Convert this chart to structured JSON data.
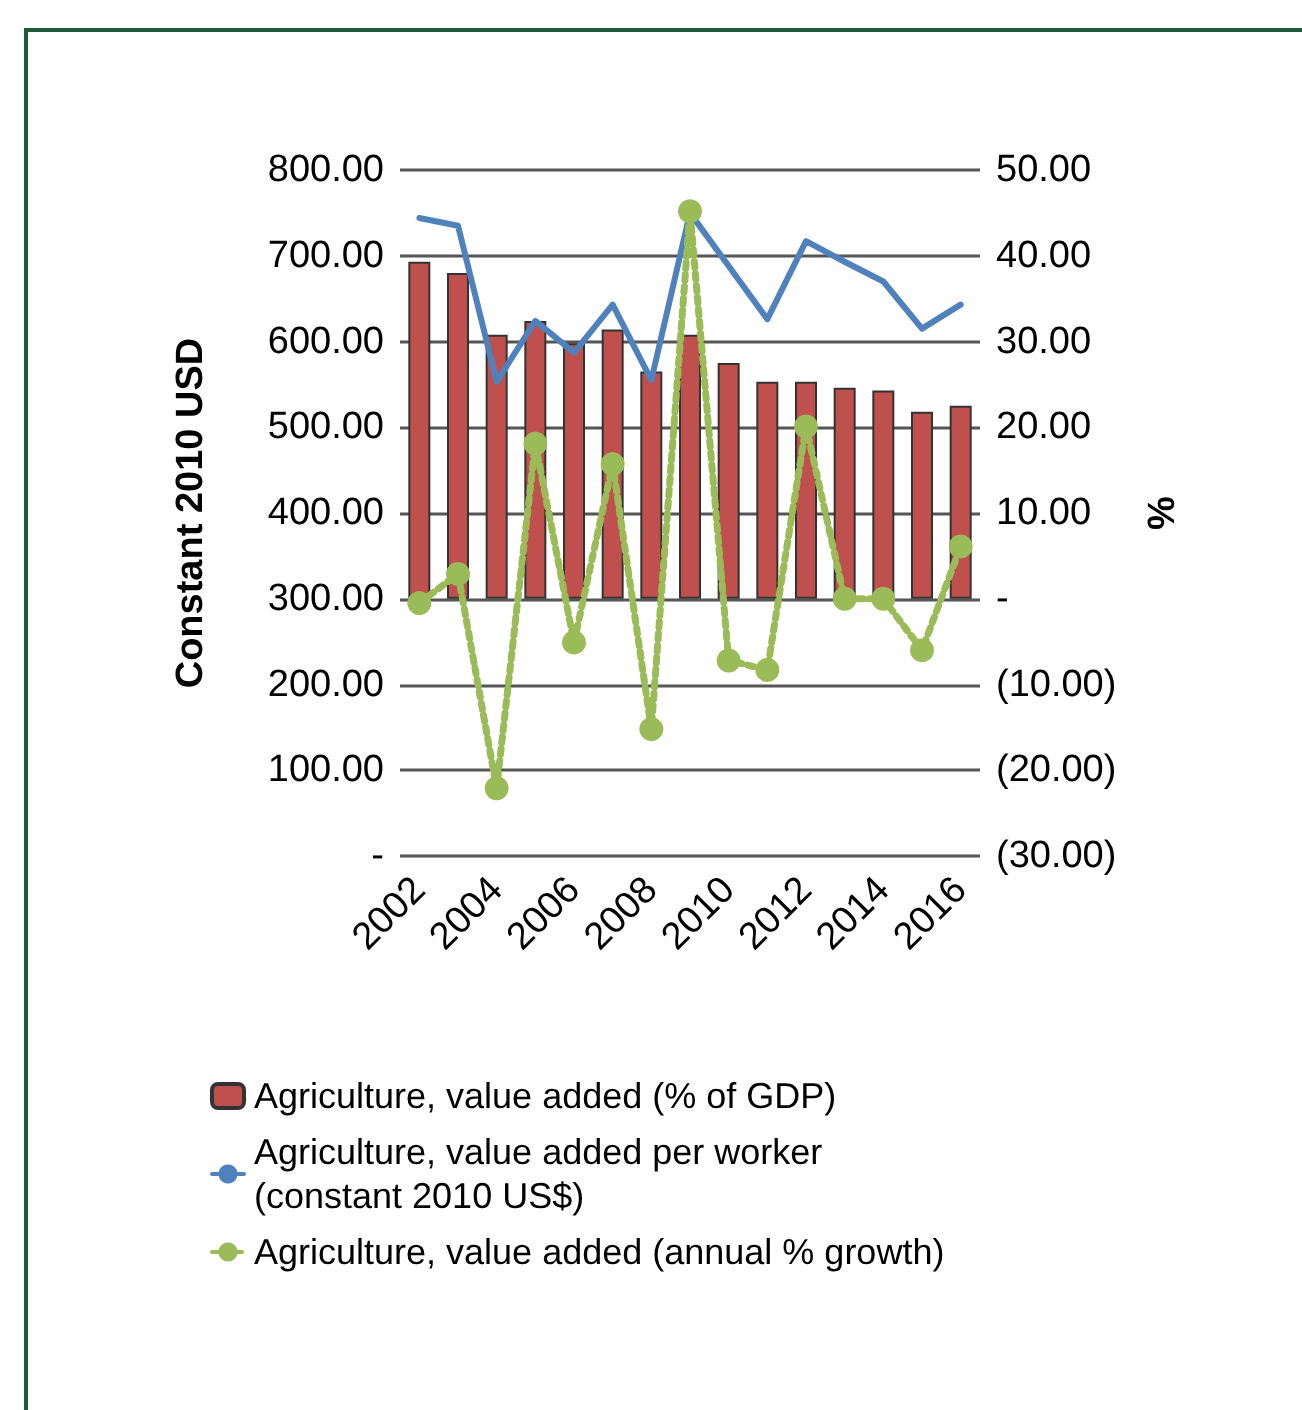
{
  "chart_data": {
    "type": "bar",
    "ylabel": "Constant 2010 USD",
    "y2label": "%",
    "categories": [
      "2002",
      null,
      "2004",
      null,
      "2006",
      null,
      "2008",
      null,
      "2010",
      null,
      "2012",
      null,
      "2014",
      null,
      "2016"
    ],
    "series": [
      {
        "name": "Agriculture, value added (% of GDP)",
        "axis": "y2",
        "color": "#c0504d",
        "values": [
          39.3,
          38.0,
          30.8,
          32.4,
          29.8,
          31.4,
          26.5,
          30.8,
          27.5,
          25.3,
          25.3,
          24.6,
          24.3,
          21.8,
          22.5
        ]
      },
      {
        "name": "Agriculture, value added per worker (constant 2010 US$)",
        "type": "line",
        "axis": "y",
        "color": "#4f81bd",
        "marker": "none",
        "line_style": "solid",
        "values": [
          744,
          735,
          553,
          624,
          587,
          643,
          555,
          750,
          688,
          626,
          717,
          693,
          670,
          615,
          643
        ]
      },
      {
        "name": "Agriculture, value added (annual % growth)",
        "type": "line",
        "axis": "y2",
        "color": "#9bbb59",
        "marker": "circle",
        "line_style": "dotted",
        "values": [
          -0.5,
          2.9,
          -22.1,
          18.1,
          -5.1,
          15.7,
          -15.2,
          45.2,
          -7.2,
          -8.3,
          20.1,
          0,
          0,
          -6.0,
          6.1
        ]
      }
    ],
    "ylim": [
      0,
      800
    ],
    "yticks": [
      {
        "value": 0,
        "label": "-"
      },
      {
        "value": 100,
        "label": "100.00"
      },
      {
        "value": 200,
        "label": "200.00"
      },
      {
        "value": 300,
        "label": "300.00"
      },
      {
        "value": 400,
        "label": "400.00"
      },
      {
        "value": 500,
        "label": "500.00"
      },
      {
        "value": 600,
        "label": "600.00"
      },
      {
        "value": 700,
        "label": "700.00"
      },
      {
        "value": 800,
        "label": "800.00"
      }
    ],
    "y2lim": [
      -30,
      50
    ],
    "y2ticks": [
      {
        "value": -30,
        "label": "(30.00)"
      },
      {
        "value": -20,
        "label": "(20.00)"
      },
      {
        "value": -10,
        "label": "(10.00)"
      },
      {
        "value": 0,
        "label": "-"
      },
      {
        "value": 10,
        "label": "10.00"
      },
      {
        "value": 20,
        "label": "20.00"
      },
      {
        "value": 30,
        "label": "30.00"
      },
      {
        "value": 40,
        "label": "40.00"
      },
      {
        "value": 50,
        "label": "50.00"
      }
    ],
    "grid": "y",
    "legend": "bottom"
  }
}
